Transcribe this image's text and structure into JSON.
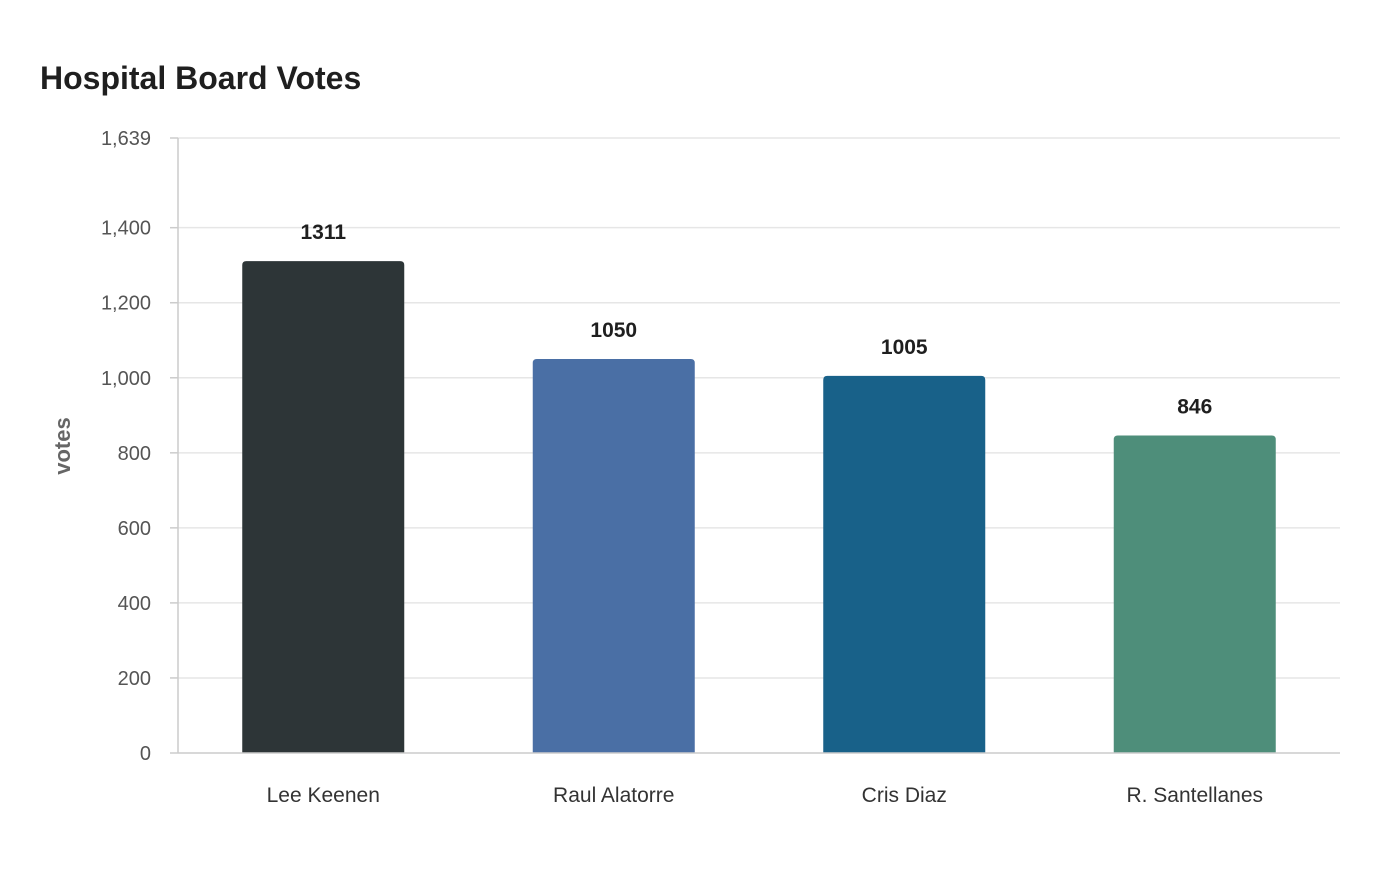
{
  "chart_data": {
    "type": "bar",
    "title": "Hospital Board Votes",
    "xlabel": "",
    "ylabel": "votes",
    "categories": [
      "Lee Keenen",
      "Raul Alatorre",
      "Cris Diaz",
      "R. Santellanes"
    ],
    "values": [
      1311,
      1050,
      1005,
      846
    ],
    "data_labels": [
      "1311",
      "1050",
      "1005",
      "846"
    ],
    "colors": [
      "#2d3537",
      "#4a6fa5",
      "#186189",
      "#4e8e7a"
    ],
    "ylim": [
      0,
      1639
    ],
    "yticks": [
      0,
      200,
      400,
      600,
      800,
      1000,
      1200,
      1400,
      1639
    ],
    "ytick_labels": [
      "0",
      "200",
      "400",
      "600",
      "800",
      "1,000",
      "1,200",
      "1,400",
      "1,639"
    ],
    "grid": true,
    "legend": "none"
  }
}
